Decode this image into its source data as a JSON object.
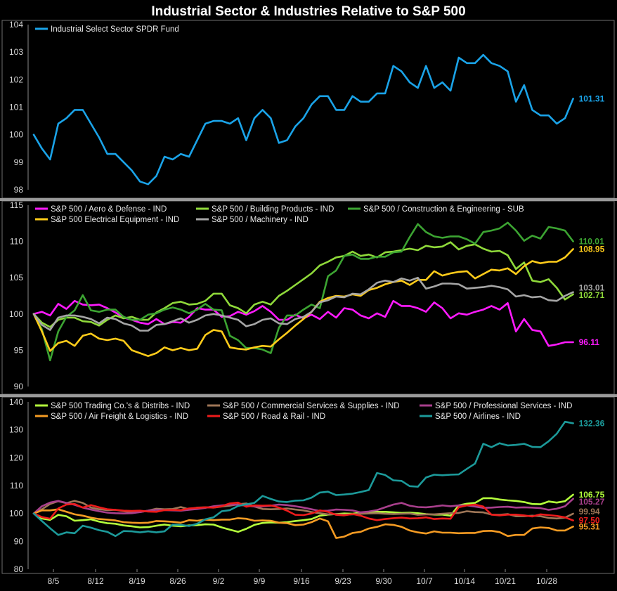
{
  "title": "Industrial Sector & Industries Relative to S&P 500",
  "x_ticks": [
    "8/5",
    "8/12",
    "8/19",
    "8/26",
    "9/2",
    "9/9",
    "9/16",
    "9/23",
    "9/30",
    "10/7",
    "10/14",
    "10/21",
    "10/28"
  ],
  "chart_data": [
    {
      "type": "line",
      "ylim": [
        98,
        104
      ],
      "yticks": [
        98,
        99,
        100,
        101,
        102,
        103,
        104
      ],
      "grid": false,
      "legend": "top-left",
      "series": [
        {
          "name": "Industrial Select Sector SPDR Fund",
          "color": "#1aa3e8",
          "end_label": "101.31",
          "values": [
            100.0,
            99.5,
            99.1,
            100.4,
            100.6,
            100.9,
            100.9,
            100.4,
            99.9,
            99.3,
            99.3,
            99.0,
            98.7,
            98.3,
            98.2,
            98.5,
            99.2,
            99.1,
            99.3,
            99.2,
            99.8,
            100.4,
            100.5,
            100.5,
            100.4,
            100.6,
            99.8,
            100.6,
            100.9,
            100.6,
            99.7,
            99.8,
            100.3,
            100.6,
            101.1,
            101.4,
            101.4,
            100.9,
            100.9,
            101.4,
            101.2,
            101.2,
            101.5,
            101.5,
            102.5,
            102.3,
            101.9,
            101.7,
            102.5,
            101.7,
            101.9,
            101.6,
            102.8,
            102.6,
            102.6,
            102.9,
            102.6,
            102.5,
            102.3,
            101.2,
            101.8,
            100.9,
            100.7,
            100.7,
            100.4,
            100.6,
            101.31
          ]
        }
      ]
    },
    {
      "type": "line",
      "ylim": [
        90,
        115
      ],
      "yticks": [
        90,
        95,
        100,
        105,
        110,
        115
      ],
      "grid": false,
      "legend": "top",
      "series": [
        {
          "name": "S&P 500 / Aero & Defense - IND",
          "color": "#ff1aff",
          "end_label": "96.11",
          "values": [
            100.0,
            100.3,
            99.8,
            101.4,
            100.7,
            101.8,
            101.3,
            101.2,
            101.3,
            100.8,
            100.2,
            99.5,
            99.2,
            98.8,
            98.6,
            99.3,
            98.6,
            98.9,
            98.8,
            99.6,
            100.8,
            100.6,
            100.6,
            99.6,
            99.7,
            100.3,
            99.9,
            100.4,
            101.1,
            100.3,
            99.2,
            99.2,
            99.9,
            99.4,
            99.9,
            99.3,
            100.3,
            99.5,
            100.8,
            100.6,
            99.8,
            99.4,
            100.1,
            99.6,
            101.8,
            101.1,
            101.1,
            100.8,
            100.3,
            101.6,
            100.8,
            99.4,
            100.1,
            99.9,
            100.3,
            100.6,
            101.1,
            100.6,
            101.5,
            97.6,
            99.3,
            97.8,
            97.6,
            95.6,
            95.8,
            96.1,
            96.11
          ]
        },
        {
          "name": "S&P 500 / Building Products - IND",
          "color": "#8fd93a",
          "end_label": "102.71",
          "values": [
            100.0,
            98.8,
            98.2,
            99.2,
            99.5,
            99.5,
            99.0,
            98.9,
            98.4,
            99.2,
            99.8,
            99.4,
            99.6,
            99.2,
            99.2,
            100.2,
            100.8,
            101.5,
            101.7,
            101.3,
            101.4,
            101.8,
            102.8,
            102.8,
            101.2,
            100.8,
            100.1,
            101.3,
            101.7,
            101.3,
            102.5,
            103.2,
            104.0,
            104.8,
            105.6,
            106.7,
            107.2,
            107.8,
            108.0,
            108.6,
            108.0,
            108.2,
            107.8,
            108.5,
            108.6,
            108.8,
            109.0,
            108.8,
            109.4,
            109.2,
            109.3,
            109.9,
            108.9,
            109.4,
            109.6,
            109.0,
            108.6,
            108.7,
            108.1,
            106.2,
            107.1,
            104.6,
            104.4,
            104.8,
            103.6,
            102.0,
            102.71
          ]
        },
        {
          "name": "S&P 500 / Construction & Engineering - SUB",
          "color": "#3ca432",
          "end_label": "110.01",
          "values": [
            100.0,
            97.9,
            93.6,
            97.6,
            99.6,
            100.5,
            102.6,
            100.5,
            100.3,
            100.6,
            100.6,
            99.6,
            99.2,
            99.2,
            99.9,
            100.1,
            100.6,
            100.9,
            100.6,
            100.1,
            100.6,
            101.4,
            100.6,
            100.5,
            97.0,
            96.4,
            95.3,
            95.3,
            95.1,
            94.6,
            98.1,
            99.8,
            99.8,
            100.6,
            101.3,
            100.8,
            105.2,
            106.0,
            108.0,
            108.2,
            107.6,
            107.6,
            107.9,
            107.9,
            108.5,
            108.6,
            110.6,
            112.4,
            111.3,
            110.7,
            110.5,
            110.7,
            110.7,
            110.3,
            109.7,
            111.3,
            111.5,
            111.8,
            112.6,
            111.5,
            110.1,
            110.8,
            110.4,
            112.0,
            111.8,
            111.5,
            110.01
          ]
        },
        {
          "name": "S&P 500 Electrical Equipment - IND",
          "color": "#ffcc1a",
          "end_label": "108.95",
          "values": [
            100.0,
            97.6,
            94.9,
            96.0,
            96.3,
            95.6,
            97.0,
            97.3,
            96.6,
            96.4,
            96.6,
            96.3,
            95.0,
            94.6,
            94.2,
            94.6,
            95.4,
            95.0,
            95.3,
            95.0,
            95.2,
            97.1,
            97.8,
            97.6,
            95.4,
            95.2,
            95.1,
            95.4,
            95.6,
            95.5,
            96.5,
            97.4,
            98.4,
            99.3,
            100.3,
            101.7,
            102.2,
            102.5,
            102.4,
            102.7,
            102.5,
            103.3,
            103.6,
            104.1,
            104.4,
            104.6,
            104.0,
            104.7,
            104.7,
            105.9,
            105.3,
            105.6,
            105.8,
            105.9,
            104.9,
            105.5,
            106.1,
            106.0,
            106.3,
            105.5,
            106.6,
            107.3,
            107.0,
            107.2,
            107.2,
            107.8,
            108.95
          ]
        },
        {
          "name": "S&P 500 / Machinery - IND",
          "color": "#a6a6a6",
          "end_label": "103.01",
          "values": [
            100.0,
            98.5,
            97.8,
            99.5,
            99.8,
            99.8,
            99.6,
            99.3,
            98.7,
            99.5,
            99.3,
            98.7,
            98.4,
            97.7,
            97.7,
            98.5,
            98.6,
            99.0,
            99.4,
            98.8,
            99.2,
            99.8,
            100.0,
            99.8,
            99.5,
            99.2,
            98.3,
            98.6,
            99.2,
            99.4,
            98.7,
            98.6,
            99.3,
            99.6,
            100.3,
            101.6,
            101.9,
            102.4,
            102.3,
            102.8,
            102.7,
            103.4,
            104.3,
            104.6,
            104.4,
            104.9,
            104.6,
            105.0,
            103.5,
            103.8,
            104.2,
            104.2,
            104.1,
            103.5,
            103.6,
            103.7,
            103.9,
            103.7,
            103.4,
            102.4,
            102.6,
            102.3,
            102.4,
            101.9,
            101.8,
            102.5,
            103.01
          ]
        }
      ]
    },
    {
      "type": "line",
      "ylim": [
        80,
        140
      ],
      "yticks": [
        80,
        90,
        100,
        110,
        120,
        130,
        140
      ],
      "grid": false,
      "legend": "top",
      "series": [
        {
          "name": "S&P 500 Trading Co.'s & Distribs - IND",
          "color": "#b4ff3c",
          "end_label": "106.75",
          "values": [
            100.0,
            98.2,
            97.7,
            99.5,
            99.0,
            97.4,
            97.6,
            97.9,
            97.1,
            96.5,
            96.3,
            95.7,
            95.4,
            95.0,
            95.1,
            95.6,
            96.0,
            95.6,
            95.4,
            95.7,
            95.8,
            96.1,
            96.0,
            95.0,
            94.2,
            93.4,
            94.5,
            95.9,
            96.6,
            96.8,
            96.7,
            96.9,
            97.3,
            97.6,
            98.0,
            99.2,
            99.6,
            99.8,
            100.0,
            99.9,
            100.3,
            100.5,
            100.6,
            100.6,
            100.4,
            100.2,
            100.3,
            100.1,
            99.8,
            99.6,
            99.6,
            99.2,
            102.9,
            103.5,
            103.8,
            105.5,
            105.5,
            105.0,
            104.7,
            104.5,
            104.1,
            103.4,
            103.3,
            104.3,
            103.9,
            104.4,
            106.75
          ]
        },
        {
          "name": "S&P 500 / Commercial Services & Supplies - IND",
          "color": "#9e7657",
          "end_label": "99.94",
          "values": [
            100.0,
            101.5,
            103.4,
            104.4,
            103.7,
            104.5,
            103.8,
            102.1,
            101.5,
            101.2,
            101.3,
            100.8,
            100.4,
            100.5,
            101.0,
            101.7,
            101.5,
            101.6,
            102.3,
            101.5,
            102.1,
            102.2,
            102.1,
            102.5,
            102.8,
            103.3,
            103.6,
            102.5,
            101.6,
            101.5,
            101.6,
            101.8,
            101.4,
            101.1,
            100.5,
            100.1,
            99.7,
            99.8,
            99.6,
            99.7,
            99.9,
            100.0,
            100.1,
            99.9,
            99.8,
            99.9,
            100.0,
            99.5,
            99.7,
            99.7,
            99.9,
            100.1,
            100.2,
            100.8,
            100.5,
            100.4,
            99.6,
            99.5,
            99.8,
            99.0,
            99.0,
            99.2,
            99.0,
            98.4,
            98.2,
            98.5,
            99.94
          ]
        },
        {
          "name": "S&P 500 / Professional Services - IND",
          "color": "#a83f8c",
          "end_label": "105.27",
          "values": [
            100.0,
            102.6,
            103.9,
            104.5,
            103.8,
            103.1,
            102.1,
            101.4,
            100.8,
            100.3,
            100.1,
            100.0,
            100.1,
            100.5,
            101.0,
            101.3,
            101.2,
            101.1,
            101.0,
            101.3,
            101.6,
            102.0,
            102.6,
            102.9,
            103.2,
            103.1,
            102.8,
            102.5,
            102.5,
            102.8,
            103.2,
            103.0,
            102.6,
            102.1,
            101.5,
            100.9,
            101.0,
            101.4,
            101.3,
            101.1,
            100.4,
            100.7,
            101.2,
            102.2,
            103.2,
            103.8,
            102.8,
            102.3,
            102.2,
            102.5,
            102.9,
            102.6,
            102.9,
            102.9,
            102.5,
            102.0,
            102.1,
            102.3,
            102.4,
            102.1,
            102.2,
            102.1,
            101.9,
            101.3,
            101.7,
            102.6,
            105.27
          ]
        },
        {
          "name": "S&P 500 / Air Freight & Logistics - IND",
          "color": "#f59b23",
          "end_label": "95.31",
          "values": [
            100.0,
            101.1,
            101.1,
            101.5,
            100.6,
            99.7,
            99.2,
            98.5,
            98.0,
            97.8,
            97.5,
            96.9,
            96.7,
            96.6,
            96.7,
            97.3,
            97.2,
            97.0,
            96.7,
            97.6,
            97.4,
            97.8,
            97.6,
            97.8,
            97.8,
            98.3,
            98.1,
            97.4,
            97.5,
            97.4,
            96.7,
            96.5,
            95.8,
            96.0,
            96.9,
            98.2,
            97.2,
            91.2,
            91.7,
            93.0,
            93.4,
            94.6,
            95.2,
            96.1,
            95.9,
            95.2,
            93.9,
            93.2,
            92.8,
            93.6,
            93.1,
            93.1,
            92.9,
            93.0,
            93.0,
            93.7,
            93.8,
            93.3,
            91.9,
            92.3,
            92.3,
            94.6,
            95.0,
            94.8,
            93.9,
            93.9,
            95.31
          ]
        },
        {
          "name": "S&P 500 / Road & Rail - IND",
          "color": "#ee1b1b",
          "end_label": "97.50",
          "values": [
            100.0,
            98.7,
            98.1,
            101.8,
            103.2,
            103.4,
            102.1,
            103.0,
            102.2,
            101.5,
            101.3,
            101.0,
            100.9,
            101.0,
            100.7,
            100.6,
            101.2,
            101.3,
            101.2,
            101.8,
            102.0,
            102.2,
            102.1,
            102.6,
            103.6,
            103.9,
            102.4,
            102.9,
            102.8,
            102.9,
            102.1,
            101.0,
            99.5,
            99.4,
            100.0,
            101.1,
            100.6,
            99.5,
            99.3,
            99.8,
            99.2,
            98.2,
            97.6,
            98.0,
            98.3,
            98.5,
            98.2,
            98.3,
            98.6,
            98.0,
            98.2,
            98.1,
            102.2,
            102.9,
            103.2,
            102.5,
            99.6,
            99.3,
            99.6,
            99.6,
            99.3,
            98.9,
            99.7,
            99.4,
            99.1,
            98.6,
            97.5
          ]
        },
        {
          "name": "S&P 500 / Airlines - IND",
          "color": "#1c9a9a",
          "end_label": "132.36",
          "values": [
            100.0,
            97.3,
            94.7,
            92.3,
            93.2,
            92.9,
            95.6,
            94.9,
            94.0,
            93.4,
            91.9,
            93.7,
            93.6,
            93.2,
            93.6,
            93.2,
            93.6,
            96.0,
            95.9,
            95.5,
            96.3,
            97.9,
            98.6,
            100.8,
            101.2,
            102.7,
            103.3,
            103.8,
            106.3,
            105.2,
            104.3,
            104.1,
            104.6,
            104.7,
            105.7,
            107.5,
            107.8,
            106.6,
            106.8,
            107.1,
            107.7,
            108.4,
            114.5,
            113.8,
            111.9,
            111.7,
            109.8,
            109.6,
            112.9,
            113.9,
            113.7,
            113.9,
            114.0,
            116.0,
            117.9,
            125.0,
            123.8,
            125.2,
            124.4,
            124.6,
            125.0,
            123.9,
            123.8,
            125.9,
            128.6,
            132.9,
            132.36
          ]
        }
      ]
    }
  ]
}
